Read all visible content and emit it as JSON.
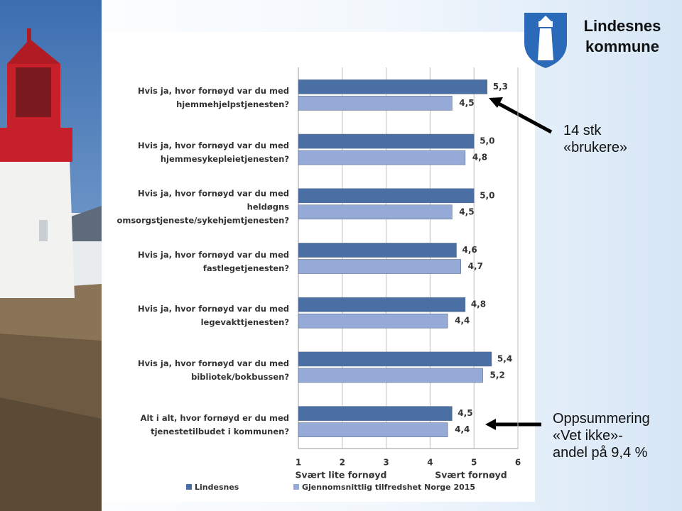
{
  "logo": "Lindesnes\nkommune",
  "annotations": [
    "14 stk\n«brukere»",
    "Oppsummering\n«Vet ikke»-\nandel på 9,4 %"
  ],
  "chart_data": {
    "type": "hbar",
    "categories": [
      "Hvis ja, hvor fornøyd var du med hjemmehjelpstjenesten?",
      "Hvis ja, hvor fornøyd var du med hjemmesykepleietjenesten?",
      "Hvis ja, hvor fornøyd var du med heldøgns omsorgstjeneste/sykehjemtjenesten?",
      "Hvis ja, hvor fornøyd var du med fastlegetjenesten?",
      "Hvis ja, hvor fornøyd var du med legevakttjenesten?",
      "Hvis ja, hvor fornøyd var du med bibliotek/bokbussen?",
      "Alt i alt, hvor fornøyd er du med tjenestetilbudet i kommunen?"
    ],
    "series": [
      {
        "name": "Lindesnes",
        "color": "#4a6fa5",
        "values": [
          5.3,
          5.0,
          5.0,
          4.6,
          4.8,
          5.4,
          4.5
        ],
        "value_labels": [
          "5,3",
          "5,0",
          "5,0",
          "4,6",
          "4,8",
          "5,4",
          "4,5"
        ]
      },
      {
        "name": "Gjennomsnittlig tilfredshet Norge 2015",
        "color": "#95aad6",
        "values": [
          4.5,
          4.8,
          4.5,
          4.7,
          4.4,
          5.2,
          4.4
        ],
        "value_labels": [
          "4,5",
          "4,8",
          "4,5",
          "4,7",
          "4,4",
          "5,2",
          "4,4"
        ]
      }
    ],
    "xlim": [
      1,
      6
    ],
    "xticks": [
      1,
      2,
      3,
      4,
      5,
      6
    ],
    "grid": true,
    "axis_labels": [
      "Svært lite fornøyd",
      "Svært fornøyd"
    ]
  }
}
